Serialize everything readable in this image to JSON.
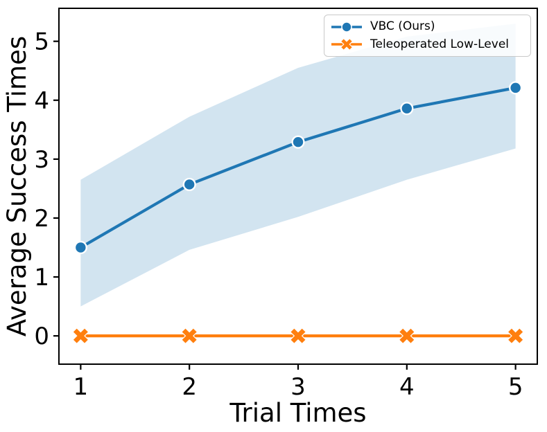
{
  "figure": {
    "background": "#ffffff"
  },
  "chart_data": {
    "type": "line",
    "title": "",
    "xlabel": "Trial Times",
    "ylabel": "Average Success Times",
    "x": [
      1,
      2,
      3,
      4,
      5
    ],
    "xticks": [
      "1",
      "2",
      "3",
      "4",
      "5"
    ],
    "yticks": [
      "0",
      "1",
      "2",
      "3",
      "4",
      "5"
    ],
    "xtick_values": [
      1,
      2,
      3,
      4,
      5
    ],
    "ytick_values": [
      0,
      1,
      2,
      3,
      4,
      5
    ],
    "xlim": [
      0.8,
      5.2
    ],
    "ylim": [
      -0.48,
      5.56
    ],
    "grid": false,
    "legend_position": "upper right",
    "axis_color": "#000000",
    "series": [
      {
        "name": "VBC (Ours)",
        "color": "#1f77b4",
        "marker": "circle",
        "values": [
          1.5,
          2.57,
          3.29,
          3.86,
          4.21
        ],
        "band_lower": [
          0.5,
          1.46,
          2.02,
          2.65,
          3.18
        ],
        "band_upper": [
          2.65,
          3.72,
          4.55,
          5.08,
          5.3
        ],
        "band_color": "#1f77b4",
        "band_alpha": 0.2
      },
      {
        "name": "Teleoperated Low-Level",
        "color": "#ff7f0e",
        "marker": "X",
        "values": [
          0,
          0,
          0,
          0,
          0
        ]
      }
    ]
  }
}
